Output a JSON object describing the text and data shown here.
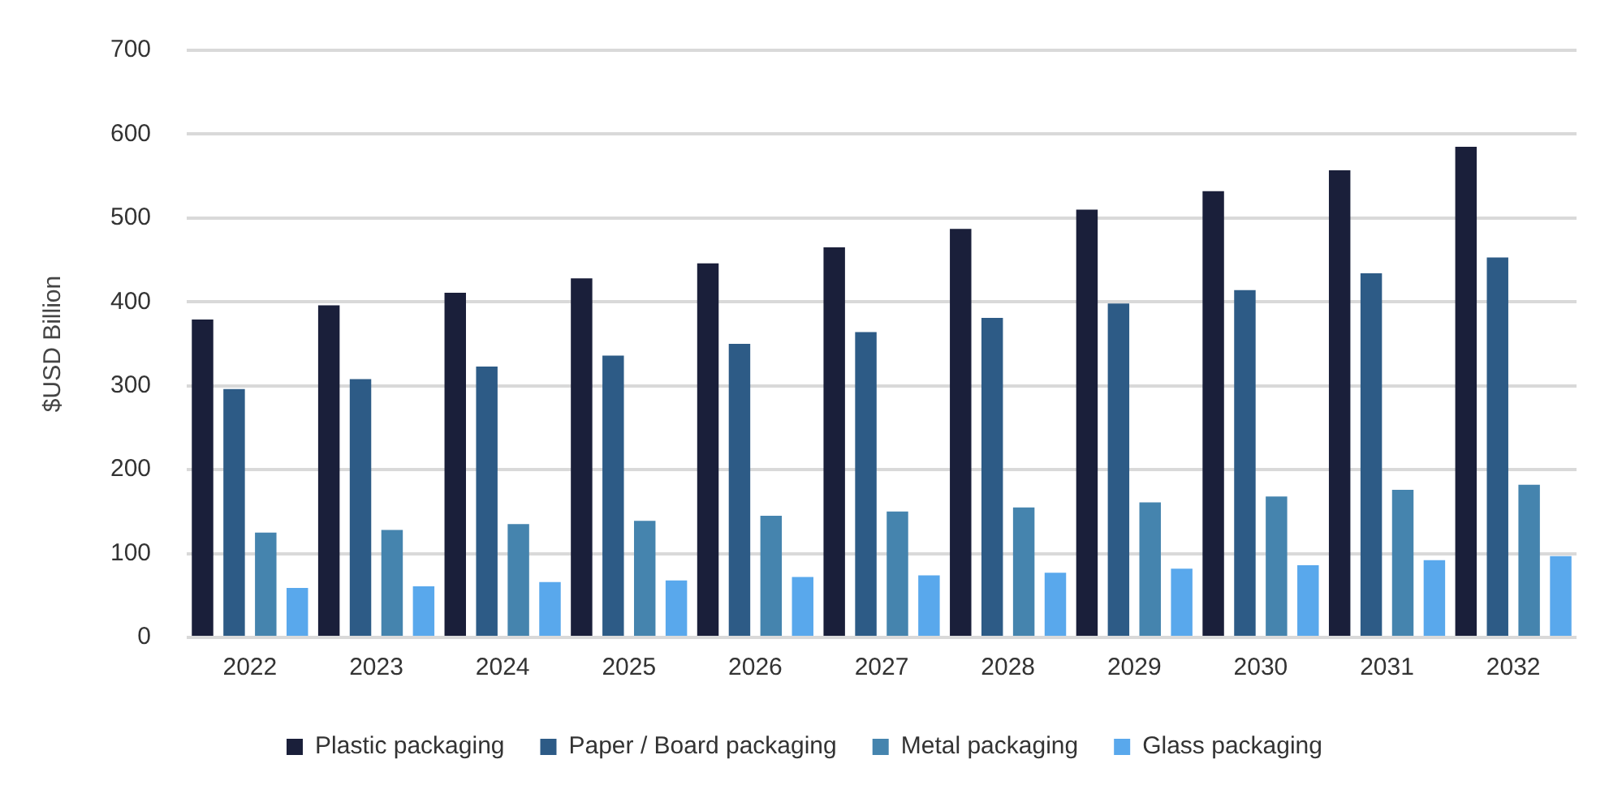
{
  "chart_data": {
    "type": "bar",
    "ylabel": "$USD Billion",
    "categories": [
      "2022",
      "2023",
      "2024",
      "2025",
      "2026",
      "2027",
      "2028",
      "2029",
      "2030",
      "2031",
      "2032"
    ],
    "series": [
      {
        "name": "Plastic packaging",
        "color": "#1a1f3a",
        "values": [
          379,
          396,
          411,
          428,
          446,
          465,
          487,
          510,
          532,
          557,
          585
        ]
      },
      {
        "name": "Paper / Board packaging",
        "color": "#2d5b86",
        "values": [
          296,
          308,
          323,
          336,
          350,
          364,
          381,
          398,
          414,
          434,
          453
        ]
      },
      {
        "name": "Metal packaging",
        "color": "#4584ae",
        "values": [
          125,
          128,
          135,
          139,
          145,
          150,
          155,
          161,
          168,
          176,
          182
        ]
      },
      {
        "name": "Glass packaging",
        "color": "#59a8ec",
        "values": [
          59,
          61,
          66,
          68,
          72,
          74,
          77,
          82,
          86,
          92,
          97
        ]
      }
    ],
    "ylim": [
      0,
      700
    ],
    "yticks": [
      0,
      100,
      200,
      300,
      400,
      500,
      600,
      700
    ],
    "grid": "y",
    "legend": "bottom"
  }
}
